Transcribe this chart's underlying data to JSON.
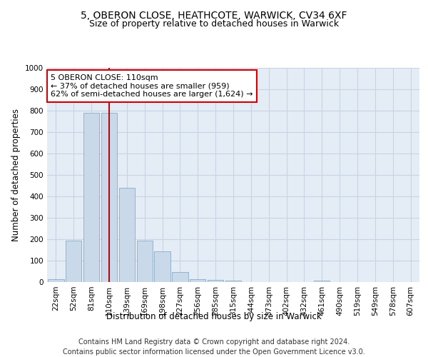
{
  "title": "5, OBERON CLOSE, HEATHCOTE, WARWICK, CV34 6XF",
  "subtitle": "Size of property relative to detached houses in Warwick",
  "xlabel": "Distribution of detached houses by size in Warwick",
  "ylabel": "Number of detached properties",
  "bar_labels": [
    "22sqm",
    "52sqm",
    "81sqm",
    "110sqm",
    "139sqm",
    "169sqm",
    "198sqm",
    "227sqm",
    "256sqm",
    "285sqm",
    "315sqm",
    "344sqm",
    "373sqm",
    "402sqm",
    "432sqm",
    "461sqm",
    "490sqm",
    "519sqm",
    "549sqm",
    "578sqm",
    "607sqm"
  ],
  "bar_values": [
    15,
    193,
    790,
    790,
    440,
    193,
    143,
    47,
    13,
    10,
    8,
    0,
    0,
    0,
    0,
    8,
    0,
    0,
    0,
    0,
    0
  ],
  "bar_color": "#c9d9e9",
  "bar_edgecolor": "#7aa0c0",
  "red_line_index": 3,
  "red_line_color": "#cc0000",
  "annotation_text": "5 OBERON CLOSE: 110sqm\n← 37% of detached houses are smaller (959)\n62% of semi-detached houses are larger (1,624) →",
  "annotation_box_color": "#cc0000",
  "ylim": [
    0,
    1000
  ],
  "yticks": [
    0,
    100,
    200,
    300,
    400,
    500,
    600,
    700,
    800,
    900,
    1000
  ],
  "grid_color": "#c8d4e4",
  "background_color": "#e4ecf6",
  "footer_line1": "Contains HM Land Registry data © Crown copyright and database right 2024.",
  "footer_line2": "Contains public sector information licensed under the Open Government Licence v3.0.",
  "title_fontsize": 10,
  "subtitle_fontsize": 9,
  "axis_label_fontsize": 8.5,
  "tick_fontsize": 7.5,
  "annotation_fontsize": 8,
  "footer_fontsize": 7
}
